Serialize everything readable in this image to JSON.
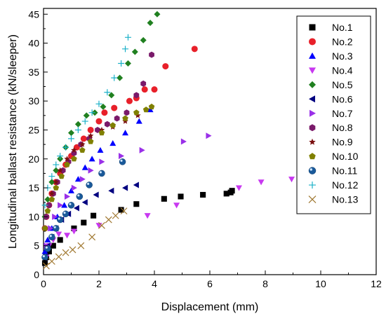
{
  "chart_data": {
    "type": "scatter",
    "xlabel": "Displacement (mm)",
    "ylabel": "Longitudinal ballast resistance (kN/sleeper)",
    "xlim": [
      0,
      12
    ],
    "ylim": [
      0,
      46
    ],
    "xticks": [
      0,
      2,
      4,
      6,
      8,
      10,
      12
    ],
    "yticks": [
      0,
      5,
      10,
      15,
      20,
      25,
      30,
      35,
      40,
      45
    ],
    "grid": false,
    "legend_position": "top-right",
    "series": [
      {
        "name": "No.1",
        "marker": "square",
        "color": "#000000",
        "x": [
          0.05,
          0.1,
          0.2,
          0.35,
          0.6,
          1.1,
          1.45,
          1.8,
          2.8,
          3.35,
          4.35,
          4.95,
          5.75,
          6.6,
          6.75,
          6.8
        ],
        "y": [
          2,
          3,
          4,
          5,
          6,
          8,
          9,
          10.2,
          11.2,
          12.2,
          13.1,
          13.5,
          13.8,
          14,
          14.2,
          14.5
        ]
      },
      {
        "name": "No.2",
        "marker": "circle",
        "color": "#e8202a",
        "x": [
          0.05,
          0.1,
          0.2,
          0.3,
          0.45,
          0.6,
          0.8,
          1.0,
          1.2,
          1.45,
          1.7,
          2.0,
          2.2,
          2.55,
          3.1,
          3.35,
          3.65,
          4.0,
          4.4,
          5.45
        ],
        "y": [
          8,
          10,
          12,
          14,
          16,
          17.5,
          19,
          20.5,
          22,
          23.5,
          25,
          26.5,
          28,
          28.8,
          30,
          30.5,
          32,
          32,
          36,
          39
        ]
      },
      {
        "name": "No.3",
        "marker": "triangle-up",
        "color": "#0000ff",
        "x": [
          0.05,
          0.15,
          0.3,
          0.5,
          0.75,
          1.0,
          1.25,
          1.5,
          1.75,
          2.05,
          2.5,
          2.95,
          3.45,
          3.85
        ],
        "y": [
          4,
          6,
          8,
          10,
          12,
          14.5,
          16.5,
          18.5,
          20,
          21.5,
          22.7,
          24.5,
          26.5,
          28.5
        ]
      },
      {
        "name": "No.4",
        "marker": "triangle-down",
        "color": "#c838f0",
        "x": [
          0.1,
          0.2,
          0.35,
          0.55,
          0.85,
          1.1,
          2.0,
          3.75,
          4.8,
          7.05,
          7.85,
          8.95
        ],
        "y": [
          3,
          5,
          6,
          7,
          6.8,
          7.5,
          8.5,
          10.2,
          12,
          15,
          16,
          16.5
        ]
      },
      {
        "name": "No.5",
        "marker": "diamond",
        "color": "#208020",
        "x": [
          0.05,
          0.15,
          0.3,
          0.45,
          0.6,
          0.8,
          1.0,
          1.25,
          1.55,
          1.85,
          2.15,
          2.45,
          2.75,
          3.05,
          3.3,
          3.6,
          3.85,
          4.1
        ],
        "y": [
          10,
          13,
          16,
          18,
          20,
          22,
          24.5,
          26,
          27.5,
          28,
          29,
          31,
          34,
          36.5,
          38.5,
          40.5,
          43.5,
          45
        ]
      },
      {
        "name": "No.6",
        "marker": "triangle-left",
        "color": "#000080",
        "x": [
          0.05,
          0.15,
          0.3,
          0.45,
          0.65,
          0.9,
          1.2,
          1.5,
          1.9,
          2.45,
          2.95,
          3.35
        ],
        "y": [
          3,
          5,
          6.5,
          8,
          9.5,
          10.5,
          11.5,
          12.5,
          13.8,
          14.5,
          15,
          15.5
        ]
      },
      {
        "name": "No.7",
        "marker": "triangle-right",
        "color": "#9a30e8",
        "x": [
          0.1,
          0.25,
          0.4,
          0.6,
          0.85,
          1.1,
          1.4,
          1.7,
          2.1,
          2.8,
          3.55,
          5.05,
          5.95
        ],
        "y": [
          5,
          8,
          10,
          12,
          13.5,
          15,
          16.5,
          18,
          19.5,
          20.5,
          21.5,
          23,
          24
        ]
      },
      {
        "name": "No.8",
        "marker": "hexagon",
        "color": "#7a1a6a",
        "x": [
          0.05,
          0.1,
          0.2,
          0.35,
          0.5,
          0.7,
          0.9,
          1.1,
          1.35,
          1.65,
          1.95,
          2.3,
          2.65,
          3.0,
          3.35,
          3.6,
          3.9
        ],
        "y": [
          8,
          10,
          12,
          14,
          16,
          18,
          19.5,
          21,
          22.5,
          23.5,
          25,
          26,
          27,
          28,
          31,
          33,
          38
        ]
      },
      {
        "name": "No.9",
        "marker": "star",
        "color": "#7a1010",
        "x": [
          0.05,
          0.15,
          0.3,
          0.45,
          0.6,
          0.85,
          1.1,
          1.4,
          1.7,
          2.1,
          2.5,
          2.95,
          3.4
        ],
        "y": [
          8,
          11,
          14,
          16,
          18,
          20,
          21.5,
          22.5,
          24,
          25,
          25.5,
          26.5,
          27.5
        ]
      },
      {
        "name": "No.10",
        "marker": "pentagon",
        "color": "#808000",
        "x": [
          0.05,
          0.15,
          0.3,
          0.45,
          0.65,
          0.85,
          1.1,
          1.4,
          1.7,
          2.1,
          2.5,
          2.95,
          3.35,
          3.7,
          3.9
        ],
        "y": [
          8,
          11,
          13,
          15,
          17,
          19,
          20,
          21.5,
          23,
          24.5,
          25.8,
          27,
          28,
          28.5,
          29
        ]
      },
      {
        "name": "No.11",
        "marker": "ball",
        "color": "#1a5a9a",
        "x": [
          0.05,
          0.15,
          0.3,
          0.45,
          0.6,
          0.8,
          1.0,
          1.3,
          1.65,
          2.1,
          2.85
        ],
        "y": [
          3,
          4.5,
          6.5,
          8,
          9.5,
          10.5,
          12,
          13.5,
          15.5,
          17.5,
          19.5
        ]
      },
      {
        "name": "No.12",
        "marker": "plus",
        "color": "#1ab0c8",
        "x": [
          0.05,
          0.15,
          0.3,
          0.45,
          0.6,
          0.8,
          1.0,
          1.25,
          1.5,
          1.75,
          2.0,
          2.3,
          2.55,
          2.8,
          2.95,
          3.05
        ],
        "y": [
          12,
          15,
          17,
          19,
          20.5,
          22,
          23.5,
          25,
          26.5,
          28,
          29.5,
          31.5,
          34,
          36.5,
          39,
          41
        ]
      },
      {
        "name": "No.13",
        "marker": "x",
        "color": "#a07830",
        "x": [
          0.1,
          0.3,
          0.55,
          0.8,
          1.05,
          1.35,
          1.75,
          2.1,
          2.35,
          2.6,
          2.9
        ],
        "y": [
          1.5,
          2.3,
          3.1,
          3.8,
          4.3,
          5.0,
          6.5,
          8.5,
          9.5,
          10.2,
          11
        ]
      }
    ]
  }
}
